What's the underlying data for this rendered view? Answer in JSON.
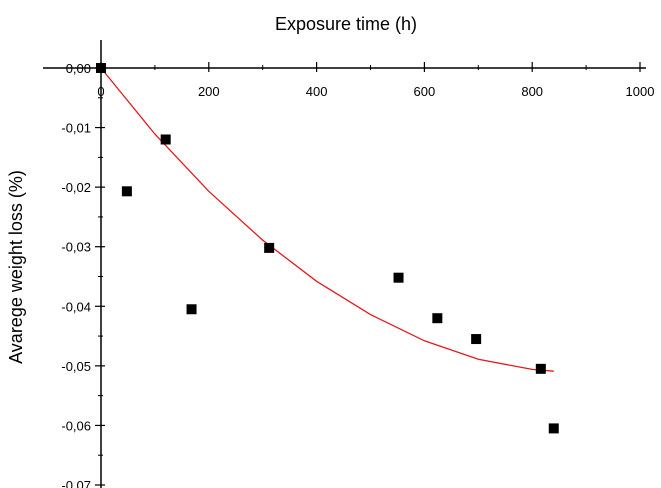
{
  "chart_data": {
    "type": "scatter",
    "xlabel": "Exposure time (h)",
    "ylabel": "Avarege weight loss (%)",
    "xlim": [
      0,
      1000
    ],
    "ylim": [
      -0.07,
      0.0
    ],
    "x_axis_position": "top",
    "x_ticks": [
      0,
      200,
      400,
      600,
      800,
      1000
    ],
    "x_tick_labels": [
      "0",
      "200",
      "400",
      "600",
      "800",
      "1000"
    ],
    "y_ticks": [
      0.0,
      -0.01,
      -0.02,
      -0.03,
      -0.04,
      -0.05,
      -0.06,
      -0.07
    ],
    "y_tick_labels": [
      "0,00",
      "-0,01",
      "-0,02",
      "-0,03",
      "-0,04",
      "-0,05",
      "-0,06",
      "-0,07"
    ],
    "grid": false,
    "legend": "none",
    "series": [
      {
        "type": "scatter",
        "marker": "square",
        "color": "#000000",
        "points": [
          {
            "x": 0,
            "y": 0.0
          },
          {
            "x": 48,
            "y": -0.0207
          },
          {
            "x": 120,
            "y": -0.012
          },
          {
            "x": 168,
            "y": -0.0405
          },
          {
            "x": 312,
            "y": -0.0302
          },
          {
            "x": 552,
            "y": -0.0352
          },
          {
            "x": 624,
            "y": -0.042
          },
          {
            "x": 696,
            "y": -0.0455
          },
          {
            "x": 816,
            "y": -0.0505
          },
          {
            "x": 840,
            "y": -0.0605
          }
        ]
      },
      {
        "type": "line",
        "color": "#e31a1c",
        "fit": "polynomial",
        "points": [
          {
            "x": 0,
            "y": 0.0
          },
          {
            "x": 100,
            "y": -0.0111
          },
          {
            "x": 200,
            "y": -0.0207
          },
          {
            "x": 300,
            "y": -0.0289
          },
          {
            "x": 400,
            "y": -0.0358
          },
          {
            "x": 500,
            "y": -0.0414
          },
          {
            "x": 600,
            "y": -0.0458
          },
          {
            "x": 700,
            "y": -0.0489
          },
          {
            "x": 800,
            "y": -0.0506
          },
          {
            "x": 840,
            "y": -0.0509
          }
        ]
      }
    ]
  }
}
